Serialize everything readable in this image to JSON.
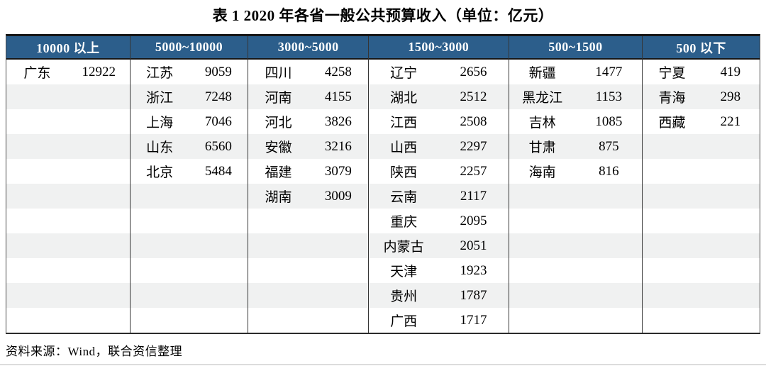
{
  "title": "表 1   2020 年各省一般公共预算收入（单位：亿元）",
  "source": "资料来源：Wind，联合资信整理",
  "colors": {
    "header_bg": "#2C5E8B",
    "header_text": "#FFFFFF",
    "stripe_row_bg": "#F0F1F1",
    "border": "#161616"
  },
  "table": {
    "row_count": 11,
    "groups": [
      {
        "label": "10000 以上",
        "rows": [
          [
            "广东",
            "12922"
          ]
        ]
      },
      {
        "label": "5000~10000",
        "rows": [
          [
            "江苏",
            "9059"
          ],
          [
            "浙江",
            "7248"
          ],
          [
            "上海",
            "7046"
          ],
          [
            "山东",
            "6560"
          ],
          [
            "北京",
            "5484"
          ]
        ]
      },
      {
        "label": "3000~5000",
        "rows": [
          [
            "四川",
            "4258"
          ],
          [
            "河南",
            "4155"
          ],
          [
            "河北",
            "3826"
          ],
          [
            "安徽",
            "3216"
          ],
          [
            "福建",
            "3079"
          ],
          [
            "湖南",
            "3009"
          ]
        ]
      },
      {
        "label": "1500~3000",
        "rows": [
          [
            "辽宁",
            "2656"
          ],
          [
            "湖北",
            "2512"
          ],
          [
            "江西",
            "2508"
          ],
          [
            "山西",
            "2297"
          ],
          [
            "陕西",
            "2257"
          ],
          [
            "云南",
            "2117"
          ],
          [
            "重庆",
            "2095"
          ],
          [
            "内蒙古",
            "2051"
          ],
          [
            "天津",
            "1923"
          ],
          [
            "贵州",
            "1787"
          ],
          [
            "广西",
            "1717"
          ]
        ]
      },
      {
        "label": "500~1500",
        "rows": [
          [
            "新疆",
            "1477"
          ],
          [
            "黑龙江",
            "1153"
          ],
          [
            "吉林",
            "1085"
          ],
          [
            "甘肃",
            "875"
          ],
          [
            "海南",
            "816"
          ]
        ]
      },
      {
        "label": "500 以下",
        "rows": [
          [
            "宁夏",
            "419"
          ],
          [
            "青海",
            "298"
          ],
          [
            "西藏",
            "221"
          ]
        ]
      }
    ]
  }
}
